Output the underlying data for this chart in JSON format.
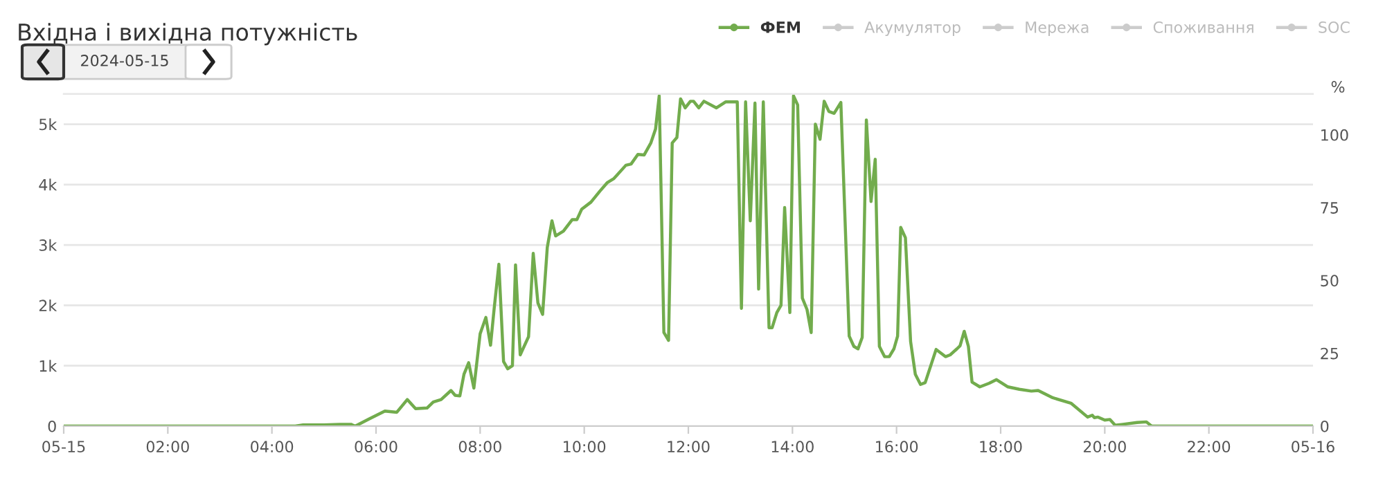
{
  "chart_data": {
    "type": "line",
    "title": "Вхідна і вихідна потужність",
    "y2label": "%",
    "annotations": [
      "2024-05-15"
    ],
    "xlim": [
      0,
      24
    ],
    "xticks": [
      {
        "value": 0,
        "label": "05-15"
      },
      {
        "value": 2,
        "label": "02:00"
      },
      {
        "value": 4,
        "label": "04:00"
      },
      {
        "value": 6,
        "label": "06:00"
      },
      {
        "value": 8,
        "label": "08:00"
      },
      {
        "value": 10,
        "label": "10:00"
      },
      {
        "value": 12,
        "label": "12:00"
      },
      {
        "value": 14,
        "label": "14:00"
      },
      {
        "value": 16,
        "label": "16:00"
      },
      {
        "value": 18,
        "label": "18:00"
      },
      {
        "value": 20,
        "label": "20:00"
      },
      {
        "value": 22,
        "label": "22:00"
      },
      {
        "value": 24,
        "label": "05-16"
      }
    ],
    "ylim": [
      0,
      5500
    ],
    "yticks": [
      0,
      {
        "value": 1000,
        "label": "1k"
      },
      {
        "value": 2000,
        "label": "2k"
      },
      {
        "value": 3000,
        "label": "3k"
      },
      {
        "value": 4000,
        "label": "4k"
      },
      {
        "value": 5000,
        "label": "5k"
      }
    ],
    "y2lim": [
      0,
      114
    ],
    "y2ticks": [
      0,
      25,
      50,
      75,
      100
    ],
    "grid": "y",
    "legend": "top right",
    "marker": "none",
    "line_style": "solid",
    "series": [
      {
        "name": "ФЕМ",
        "color": "#72ac4d",
        "x": [
          0,
          4.45,
          4.6,
          5.0,
          5.3,
          5.52,
          5.6,
          5.87,
          6.17,
          6.4,
          6.6,
          6.76,
          6.98,
          7.1,
          7.25,
          7.44,
          7.52,
          7.61,
          7.69,
          7.78,
          7.88,
          8.0,
          8.11,
          8.2,
          8.27,
          8.36,
          8.45,
          8.53,
          8.62,
          8.68,
          8.77,
          8.93,
          9.02,
          9.11,
          9.2,
          9.29,
          9.38,
          9.45,
          9.6,
          9.77,
          9.86,
          9.95,
          10.13,
          10.3,
          10.44,
          10.57,
          10.8,
          10.9,
          11.03,
          11.15,
          11.28,
          11.37,
          11.44,
          11.53,
          11.62,
          11.69,
          11.78,
          11.85,
          11.94,
          12.04,
          12.1,
          12.2,
          12.3,
          12.54,
          12.72,
          12.94,
          13.02,
          13.1,
          13.19,
          13.28,
          13.35,
          13.44,
          13.55,
          13.61,
          13.7,
          13.78,
          13.85,
          13.95,
          14.02,
          14.1,
          14.19,
          14.28,
          14.36,
          14.44,
          14.53,
          14.61,
          14.7,
          14.8,
          14.93,
          15.09,
          15.18,
          15.26,
          15.34,
          15.42,
          15.51,
          15.59,
          15.67,
          15.77,
          15.86,
          15.95,
          16.02,
          16.08,
          16.17,
          16.27,
          16.36,
          16.46,
          16.55,
          16.76,
          16.94,
          17.03,
          17.16,
          17.22,
          17.3,
          17.38,
          17.45,
          17.6,
          17.78,
          17.92,
          18.14,
          18.36,
          18.59,
          18.72,
          19.0,
          19.35,
          19.67,
          19.76,
          19.8,
          19.87,
          20.0,
          20.1,
          20.2,
          20.35,
          20.62,
          20.8,
          20.9,
          24
        ],
        "values": [
          0,
          0,
          20,
          20,
          30,
          30,
          0,
          120,
          250,
          230,
          440,
          290,
          300,
          400,
          440,
          590,
          510,
          500,
          860,
          1050,
          630,
          1530,
          1800,
          1340,
          1950,
          2680,
          1070,
          950,
          1000,
          2670,
          1180,
          1480,
          2860,
          2040,
          1850,
          2960,
          3400,
          3150,
          3230,
          3420,
          3420,
          3590,
          3710,
          3890,
          4030,
          4100,
          4320,
          4340,
          4500,
          4490,
          4690,
          4920,
          5470,
          1550,
          1420,
          4690,
          4780,
          5420,
          5270,
          5380,
          5380,
          5270,
          5380,
          5270,
          5370,
          5370,
          1950,
          5370,
          3400,
          5350,
          2270,
          5370,
          1630,
          1630,
          1880,
          2000,
          3620,
          1880,
          5470,
          5320,
          2120,
          1930,
          1550,
          5000,
          4750,
          5380,
          5210,
          5180,
          5360,
          1490,
          1320,
          1280,
          1470,
          5070,
          3720,
          4420,
          1320,
          1150,
          1150,
          1280,
          1490,
          3290,
          3120,
          1400,
          860,
          690,
          720,
          1270,
          1150,
          1180,
          1280,
          1330,
          1570,
          1320,
          730,
          650,
          710,
          770,
          650,
          610,
          580,
          590,
          470,
          380,
          150,
          180,
          140,
          150,
          100,
          110,
          15,
          30,
          60,
          70,
          0,
          0
        ]
      },
      {
        "name": "Акумулятор",
        "color": "#cccccc"
      },
      {
        "name": "Мережа",
        "color": "#cccccc"
      },
      {
        "name": "Споживання",
        "color": "#cccccc"
      },
      {
        "name": "SOC",
        "color": "#cccccc"
      }
    ]
  }
}
